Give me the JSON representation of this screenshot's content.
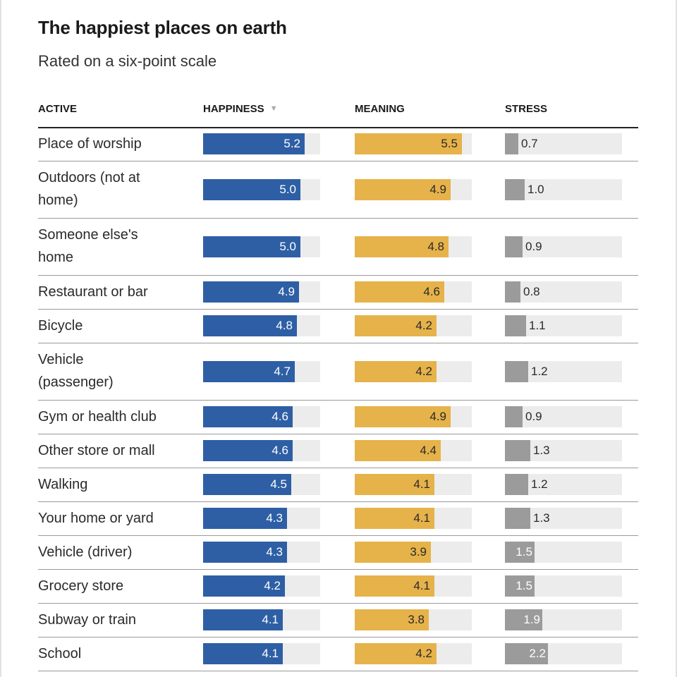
{
  "title": "The happiest places on earth",
  "subtitle": "Rated on a six-point scale",
  "colors": {
    "happiness": "#2e5fa5",
    "meaning": "#e6b24a",
    "stress": "#9b9b9b",
    "track": "#ececec"
  },
  "chart_data": {
    "type": "table",
    "title": "The happiest places on earth",
    "subtitle": "Rated on a six-point scale",
    "scale_max": 6,
    "columns": [
      "ACTIVE",
      "HAPPINESS",
      "MEANING",
      "STRESS"
    ],
    "sorted_by": "HAPPINESS",
    "rows": [
      {
        "label": "Place of worship",
        "happiness": 5.2,
        "meaning": 5.5,
        "stress": 0.7,
        "lines": 1
      },
      {
        "label": "Outdoors (not at home)",
        "happiness": 5.0,
        "meaning": 4.9,
        "stress": 1.0,
        "lines": 2
      },
      {
        "label": "Someone else's home",
        "happiness": 5.0,
        "meaning": 4.8,
        "stress": 0.9,
        "lines": 2
      },
      {
        "label": "Restaurant or bar",
        "happiness": 4.9,
        "meaning": 4.6,
        "stress": 0.8,
        "lines": 1
      },
      {
        "label": "Bicycle",
        "happiness": 4.8,
        "meaning": 4.2,
        "stress": 1.1,
        "lines": 1
      },
      {
        "label": "Vehicle (passenger)",
        "happiness": 4.7,
        "meaning": 4.2,
        "stress": 1.2,
        "lines": 2
      },
      {
        "label": "Gym or health club",
        "happiness": 4.6,
        "meaning": 4.9,
        "stress": 0.9,
        "lines": 1
      },
      {
        "label": "Other store or mall",
        "happiness": 4.6,
        "meaning": 4.4,
        "stress": 1.3,
        "lines": 1
      },
      {
        "label": "Walking",
        "happiness": 4.5,
        "meaning": 4.1,
        "stress": 1.2,
        "lines": 1
      },
      {
        "label": "Your home or yard",
        "happiness": 4.3,
        "meaning": 4.1,
        "stress": 1.3,
        "lines": 1
      },
      {
        "label": "Vehicle (driver)",
        "happiness": 4.3,
        "meaning": 3.9,
        "stress": 1.5,
        "lines": 1
      },
      {
        "label": "Grocery store",
        "happiness": 4.2,
        "meaning": 4.1,
        "stress": 1.5,
        "lines": 1
      },
      {
        "label": "Subway or train",
        "happiness": 4.1,
        "meaning": 3.8,
        "stress": 1.9,
        "lines": 1
      },
      {
        "label": "School",
        "happiness": 4.1,
        "meaning": 4.2,
        "stress": 2.2,
        "lines": 1
      }
    ]
  }
}
